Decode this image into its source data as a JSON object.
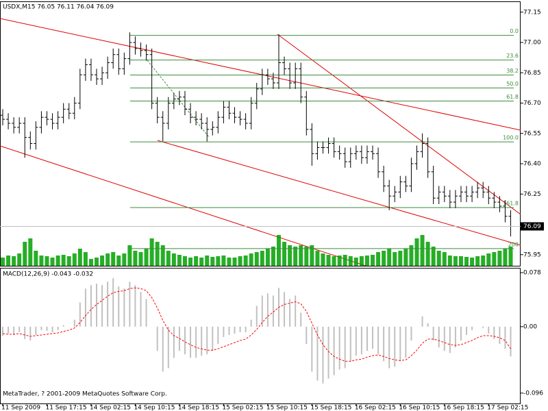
{
  "chart_data": [
    {
      "type": "ohlc",
      "title": "USDX,M15 76.05 76.11 76.04 76.09",
      "color": "#000000",
      "categories": [
        "11 Sep 2009",
        null,
        null,
        null,
        null,
        null,
        null,
        null,
        "11 Sep 17:15",
        null,
        null,
        null,
        null,
        null,
        null,
        null,
        "14 Sep 02:15",
        null,
        null,
        null,
        null,
        null,
        null,
        null,
        "14 Sep 10:15",
        null,
        null,
        null,
        null,
        null,
        null,
        null,
        "14 Sep 18:15",
        null,
        null,
        null,
        null,
        null,
        null,
        null,
        "15 Sep 02:15",
        null,
        null,
        null,
        null,
        null,
        null,
        null,
        "15 Sep 10:15",
        null,
        null,
        null,
        null,
        null,
        null,
        null,
        "15 Sep 18:15",
        null,
        null,
        null,
        null,
        null,
        null,
        null,
        "16 Sep 02:15",
        null,
        null,
        null,
        null,
        null,
        null,
        null,
        "16 Sep 10:15",
        null,
        null,
        null,
        null,
        null,
        null,
        null,
        "16 Sep 18:15",
        null,
        null,
        null,
        null,
        null,
        null,
        null,
        "17 Sep 02:15",
        null,
        null,
        null,
        null
      ],
      "open": [
        76.64,
        76.62,
        76.6,
        76.58,
        76.6,
        76.53,
        76.5,
        76.58,
        76.63,
        76.62,
        76.6,
        76.63,
        76.67,
        76.65,
        76.7,
        76.84,
        76.89,
        76.84,
        76.82,
        76.85,
        76.9,
        76.94,
        76.87,
        76.92,
        77.0,
        76.97,
        76.96,
        76.94,
        76.7,
        76.63,
        76.6,
        76.7,
        76.72,
        76.73,
        76.67,
        76.63,
        76.62,
        76.6,
        76.57,
        76.58,
        76.63,
        76.68,
        76.65,
        76.63,
        76.62,
        76.6,
        76.7,
        76.77,
        76.84,
        76.82,
        76.8,
        76.9,
        76.87,
        76.8,
        76.87,
        76.73,
        76.57,
        76.45,
        76.48,
        76.48,
        76.5,
        76.46,
        76.45,
        76.41,
        76.45,
        76.46,
        76.43,
        76.46,
        76.45,
        76.36,
        76.29,
        76.24,
        76.26,
        76.31,
        76.29,
        76.4,
        76.46,
        76.5,
        76.36,
        76.23,
        76.26,
        76.24,
        76.21,
        76.24,
        76.26,
        76.24,
        76.26,
        76.28,
        76.26,
        76.23,
        76.21,
        76.19,
        76.14
      ],
      "high": [
        76.67,
        76.65,
        76.63,
        76.63,
        76.63,
        76.56,
        76.61,
        76.66,
        76.66,
        76.65,
        76.66,
        76.7,
        76.7,
        76.73,
        76.87,
        76.92,
        76.92,
        76.87,
        76.88,
        76.93,
        76.97,
        76.97,
        76.95,
        77.05,
        77.03,
        77.0,
        76.99,
        76.97,
        76.73,
        76.66,
        76.73,
        76.75,
        76.76,
        76.76,
        76.7,
        76.66,
        76.65,
        76.63,
        76.61,
        76.66,
        76.71,
        76.71,
        76.68,
        76.66,
        76.65,
        76.73,
        76.8,
        76.87,
        76.87,
        76.85,
        77.04,
        76.93,
        76.9,
        76.9,
        76.9,
        76.76,
        76.6,
        76.51,
        76.51,
        76.53,
        76.53,
        76.49,
        76.48,
        76.48,
        76.49,
        76.49,
        76.49,
        76.49,
        76.48,
        76.39,
        76.32,
        76.29,
        76.34,
        76.34,
        76.43,
        76.49,
        76.55,
        76.53,
        76.39,
        76.29,
        76.29,
        76.27,
        76.27,
        76.29,
        76.29,
        76.29,
        76.31,
        76.31,
        76.29,
        76.26,
        76.24,
        76.22,
        76.17
      ],
      "low": [
        76.59,
        76.57,
        76.55,
        76.55,
        76.43,
        76.47,
        76.47,
        76.55,
        76.59,
        76.57,
        76.57,
        76.6,
        76.62,
        76.62,
        76.67,
        76.81,
        76.81,
        76.79,
        76.79,
        76.82,
        76.87,
        76.84,
        76.84,
        76.89,
        76.94,
        76.93,
        76.91,
        76.67,
        76.6,
        76.51,
        76.57,
        76.67,
        76.69,
        76.64,
        76.6,
        76.59,
        76.57,
        76.51,
        76.54,
        76.55,
        76.6,
        76.62,
        76.6,
        76.59,
        76.57,
        76.57,
        76.67,
        76.74,
        76.79,
        76.77,
        76.77,
        76.84,
        76.77,
        76.77,
        76.7,
        76.54,
        76.39,
        76.42,
        76.45,
        76.45,
        76.43,
        76.42,
        76.38,
        76.38,
        76.42,
        76.4,
        76.4,
        76.42,
        76.33,
        76.26,
        76.17,
        76.21,
        76.23,
        76.26,
        76.26,
        76.37,
        76.43,
        76.33,
        76.2,
        76.2,
        76.21,
        76.18,
        76.18,
        76.21,
        76.21,
        76.21,
        76.23,
        76.23,
        76.2,
        76.18,
        76.16,
        76.11,
        76.04
      ],
      "close": [
        76.62,
        76.6,
        76.58,
        76.6,
        76.53,
        76.5,
        76.58,
        76.63,
        76.62,
        76.6,
        76.63,
        76.67,
        76.65,
        76.7,
        76.84,
        76.89,
        76.84,
        76.82,
        76.85,
        76.9,
        76.94,
        76.87,
        76.92,
        77.0,
        76.97,
        76.96,
        76.94,
        76.7,
        76.63,
        76.6,
        76.7,
        76.72,
        76.73,
        76.67,
        76.63,
        76.62,
        76.6,
        76.57,
        76.58,
        76.63,
        76.68,
        76.65,
        76.63,
        76.62,
        76.6,
        76.7,
        76.77,
        76.84,
        76.82,
        76.8,
        76.9,
        76.87,
        76.8,
        76.87,
        76.73,
        76.57,
        76.45,
        76.48,
        76.48,
        76.5,
        76.46,
        76.45,
        76.41,
        76.45,
        76.46,
        76.43,
        76.46,
        76.45,
        76.36,
        76.29,
        76.24,
        76.26,
        76.31,
        76.29,
        76.4,
        76.46,
        76.5,
        76.36,
        76.23,
        76.26,
        76.24,
        76.21,
        76.24,
        76.26,
        76.24,
        76.26,
        76.28,
        76.26,
        76.23,
        76.21,
        76.19,
        76.14,
        76.09
      ],
      "volume": {
        "color": "#00a000",
        "values": [
          12,
          15,
          14,
          18,
          35,
          40,
          22,
          15,
          14,
          12,
          15,
          16,
          14,
          18,
          25,
          20,
          10,
          12,
          15,
          18,
          20,
          15,
          18,
          30,
          22,
          20,
          25,
          40,
          35,
          30,
          22,
          18,
          16,
          14,
          12,
          14,
          12,
          15,
          13,
          14,
          15,
          12,
          12,
          14,
          15,
          18,
          20,
          22,
          25,
          28,
          45,
          35,
          30,
          28,
          30,
          28,
          30,
          22,
          18,
          16,
          14,
          15,
          16,
          14,
          12,
          14,
          15,
          16,
          20,
          22,
          25,
          20,
          22,
          25,
          30,
          40,
          45,
          35,
          28,
          22,
          20,
          15,
          14,
          14,
          13,
          12,
          14,
          15,
          18,
          20,
          22,
          25,
          28
        ]
      },
      "fibo_color": "#3c8a3c",
      "fibo": [
        {
          "label": "0.0",
          "price": 77.035
        },
        {
          "label": "23.6",
          "price": 76.913
        },
        {
          "label": "38.2",
          "price": 76.839
        },
        {
          "label": "50.0",
          "price": 76.775
        },
        {
          "label": "61.8",
          "price": 76.71
        },
        {
          "label": "100.0",
          "price": 76.508
        },
        {
          "label": "161.8",
          "price": 76.183
        },
        {
          "label": "200",
          "price": 75.98
        }
      ],
      "ylim": [
        75.895,
        77.2
      ],
      "yticks": [
        77.15,
        {
          "value": 77,
          "label": "77.00"
        },
        76.85,
        {
          "value": 76.7,
          "label": "76.70"
        },
        76.55,
        {
          "value": 76.4,
          "label": "76.40"
        },
        76.25,
        75.95
      ]
    },
    {
      "type": "macd",
      "title": "MACD(12,26,9) -0.043 -0.032",
      "histogram": {
        "color": "#c0c0c0",
        "values": [
          -0.013,
          -0.01,
          -0.012,
          -0.008,
          -0.018,
          -0.02,
          -0.012,
          -0.005,
          -0.006,
          -0.008,
          -0.005,
          0.002,
          0,
          0.01,
          0.035,
          0.055,
          0.06,
          0.062,
          0.06,
          0.065,
          0.07,
          0.058,
          0.055,
          0.065,
          0.06,
          0.05,
          0.04,
          0,
          -0.035,
          -0.065,
          -0.06,
          -0.045,
          -0.035,
          -0.04,
          -0.045,
          -0.045,
          -0.042,
          -0.04,
          -0.035,
          -0.025,
          -0.015,
          -0.012,
          -0.01,
          -0.008,
          -0.008,
          0.01,
          0.03,
          0.045,
          0.048,
          0.045,
          0.056,
          0.05,
          0.04,
          0.045,
          0.02,
          -0.025,
          -0.065,
          -0.078,
          -0.082,
          -0.075,
          -0.07,
          -0.062,
          -0.06,
          -0.05,
          -0.042,
          -0.04,
          -0.035,
          -0.032,
          -0.04,
          -0.05,
          -0.06,
          -0.058,
          -0.05,
          -0.045,
          -0.02,
          0,
          0.015,
          0.005,
          -0.02,
          -0.03,
          -0.035,
          -0.038,
          -0.03,
          -0.02,
          -0.012,
          -0.005,
          0,
          -0.002,
          -0.01,
          -0.018,
          -0.025,
          -0.032,
          -0.043
        ]
      },
      "signal": {
        "color": "#ff0000",
        "values": [
          -0.01,
          -0.011,
          -0.011,
          -0.01,
          -0.012,
          -0.014,
          -0.013,
          -0.012,
          -0.011,
          -0.01,
          -0.009,
          -0.007,
          -0.005,
          -0.002,
          0.006,
          0.016,
          0.025,
          0.032,
          0.038,
          0.044,
          0.049,
          0.051,
          0.052,
          0.055,
          0.056,
          0.055,
          0.052,
          0.042,
          0.027,
          0.009,
          -0.005,
          -0.013,
          -0.017,
          -0.022,
          -0.026,
          -0.03,
          -0.032,
          -0.034,
          -0.034,
          -0.032,
          -0.029,
          -0.026,
          -0.023,
          -0.02,
          -0.018,
          -0.012,
          -0.004,
          0.006,
          0.015,
          0.021,
          0.028,
          0.032,
          0.034,
          0.036,
          0.033,
          0.022,
          0.005,
          -0.012,
          -0.026,
          -0.036,
          -0.043,
          -0.047,
          -0.05,
          -0.05,
          -0.048,
          -0.047,
          -0.044,
          -0.042,
          -0.041,
          -0.043,
          -0.046,
          -0.048,
          -0.049,
          -0.048,
          -0.042,
          -0.034,
          -0.024,
          -0.018,
          -0.018,
          -0.02,
          -0.023,
          -0.026,
          -0.027,
          -0.026,
          -0.023,
          -0.02,
          -0.016,
          -0.013,
          -0.013,
          -0.014,
          -0.016,
          -0.02,
          -0.032
        ]
      },
      "ylim": [
        -0.111,
        0.084
      ],
      "yticks": [
        0.078,
        {
          "value": 0,
          "label": "0.00"
        },
        -0.096
      ]
    }
  ],
  "footer": "MetaTrader, ? 2001-2009 MetaQuotes Software Corp."
}
